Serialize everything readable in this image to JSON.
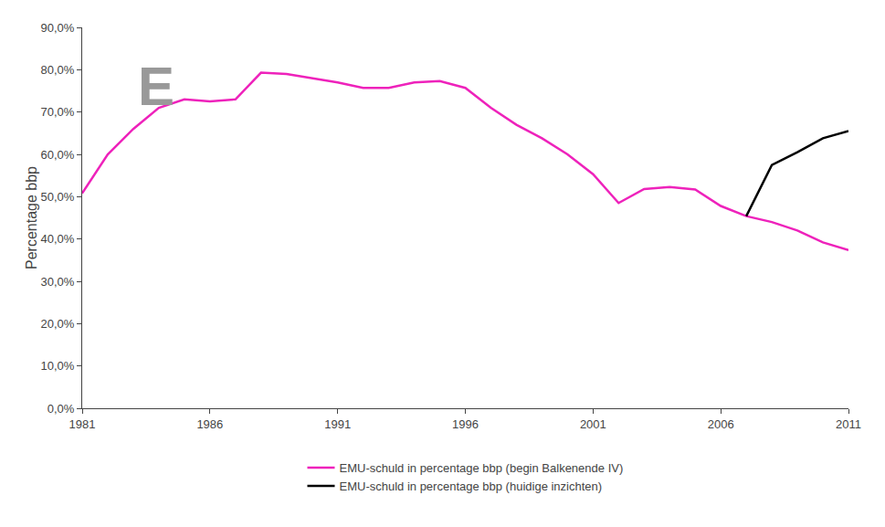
{
  "chart_data": {
    "type": "line",
    "y_label": "Percentage bbp",
    "x": [
      1981,
      1982,
      1983,
      1984,
      1985,
      1986,
      1987,
      1988,
      1989,
      1990,
      1991,
      1992,
      1993,
      1994,
      1995,
      1996,
      1997,
      1998,
      1999,
      2000,
      2001,
      2002,
      2003,
      2004,
      2005,
      2006,
      2007,
      2008,
      2009,
      2010,
      2011
    ],
    "series": [
      {
        "name": "EMU-schuld in percentage bbp (begin Balkenende IV)",
        "color": "#EE22BB",
        "values": [
          0.508,
          0.6,
          0.66,
          0.71,
          0.73,
          0.725,
          0.73,
          0.793,
          0.79,
          0.78,
          0.77,
          0.757,
          0.757,
          0.77,
          0.773,
          0.757,
          0.71,
          0.67,
          0.638,
          0.6,
          0.553,
          0.485,
          0.518,
          0.523,
          0.517,
          0.478,
          0.454,
          0.44,
          0.42,
          0.392,
          0.374
        ]
      },
      {
        "name": "EMU-schuld in percentage bbp (huidige inzichten)",
        "color": "#000000",
        "values": [
          null,
          null,
          null,
          null,
          null,
          null,
          null,
          null,
          null,
          null,
          null,
          null,
          null,
          null,
          null,
          null,
          null,
          null,
          null,
          null,
          null,
          null,
          null,
          null,
          null,
          null,
          0.454,
          0.575,
          0.605,
          0.638,
          0.655
        ]
      }
    ],
    "xlim": [
      1981,
      2011
    ],
    "xticks": [
      1981,
      1986,
      1991,
      1996,
      2001,
      2006,
      2011
    ],
    "ylim": [
      0.0,
      0.9
    ],
    "yticks": [
      {
        "value": 0.0,
        "label": "0,0%"
      },
      {
        "value": 0.1,
        "label": "10,0%"
      },
      {
        "value": 0.2,
        "label": "20,0%"
      },
      {
        "value": 0.3,
        "label": "30,0%"
      },
      {
        "value": 0.4,
        "label": "40,0%"
      },
      {
        "value": 0.5,
        "label": "50,0%"
      },
      {
        "value": 0.6,
        "label": "60,0%"
      },
      {
        "value": 0.7,
        "label": "70,0%"
      },
      {
        "value": 0.8,
        "label": "80,0%"
      },
      {
        "value": 0.9,
        "label": "90,0%"
      }
    ],
    "annotations": [
      {
        "text": "E",
        "color": "#999999"
      }
    ],
    "grid": false,
    "legend": "bottom"
  }
}
